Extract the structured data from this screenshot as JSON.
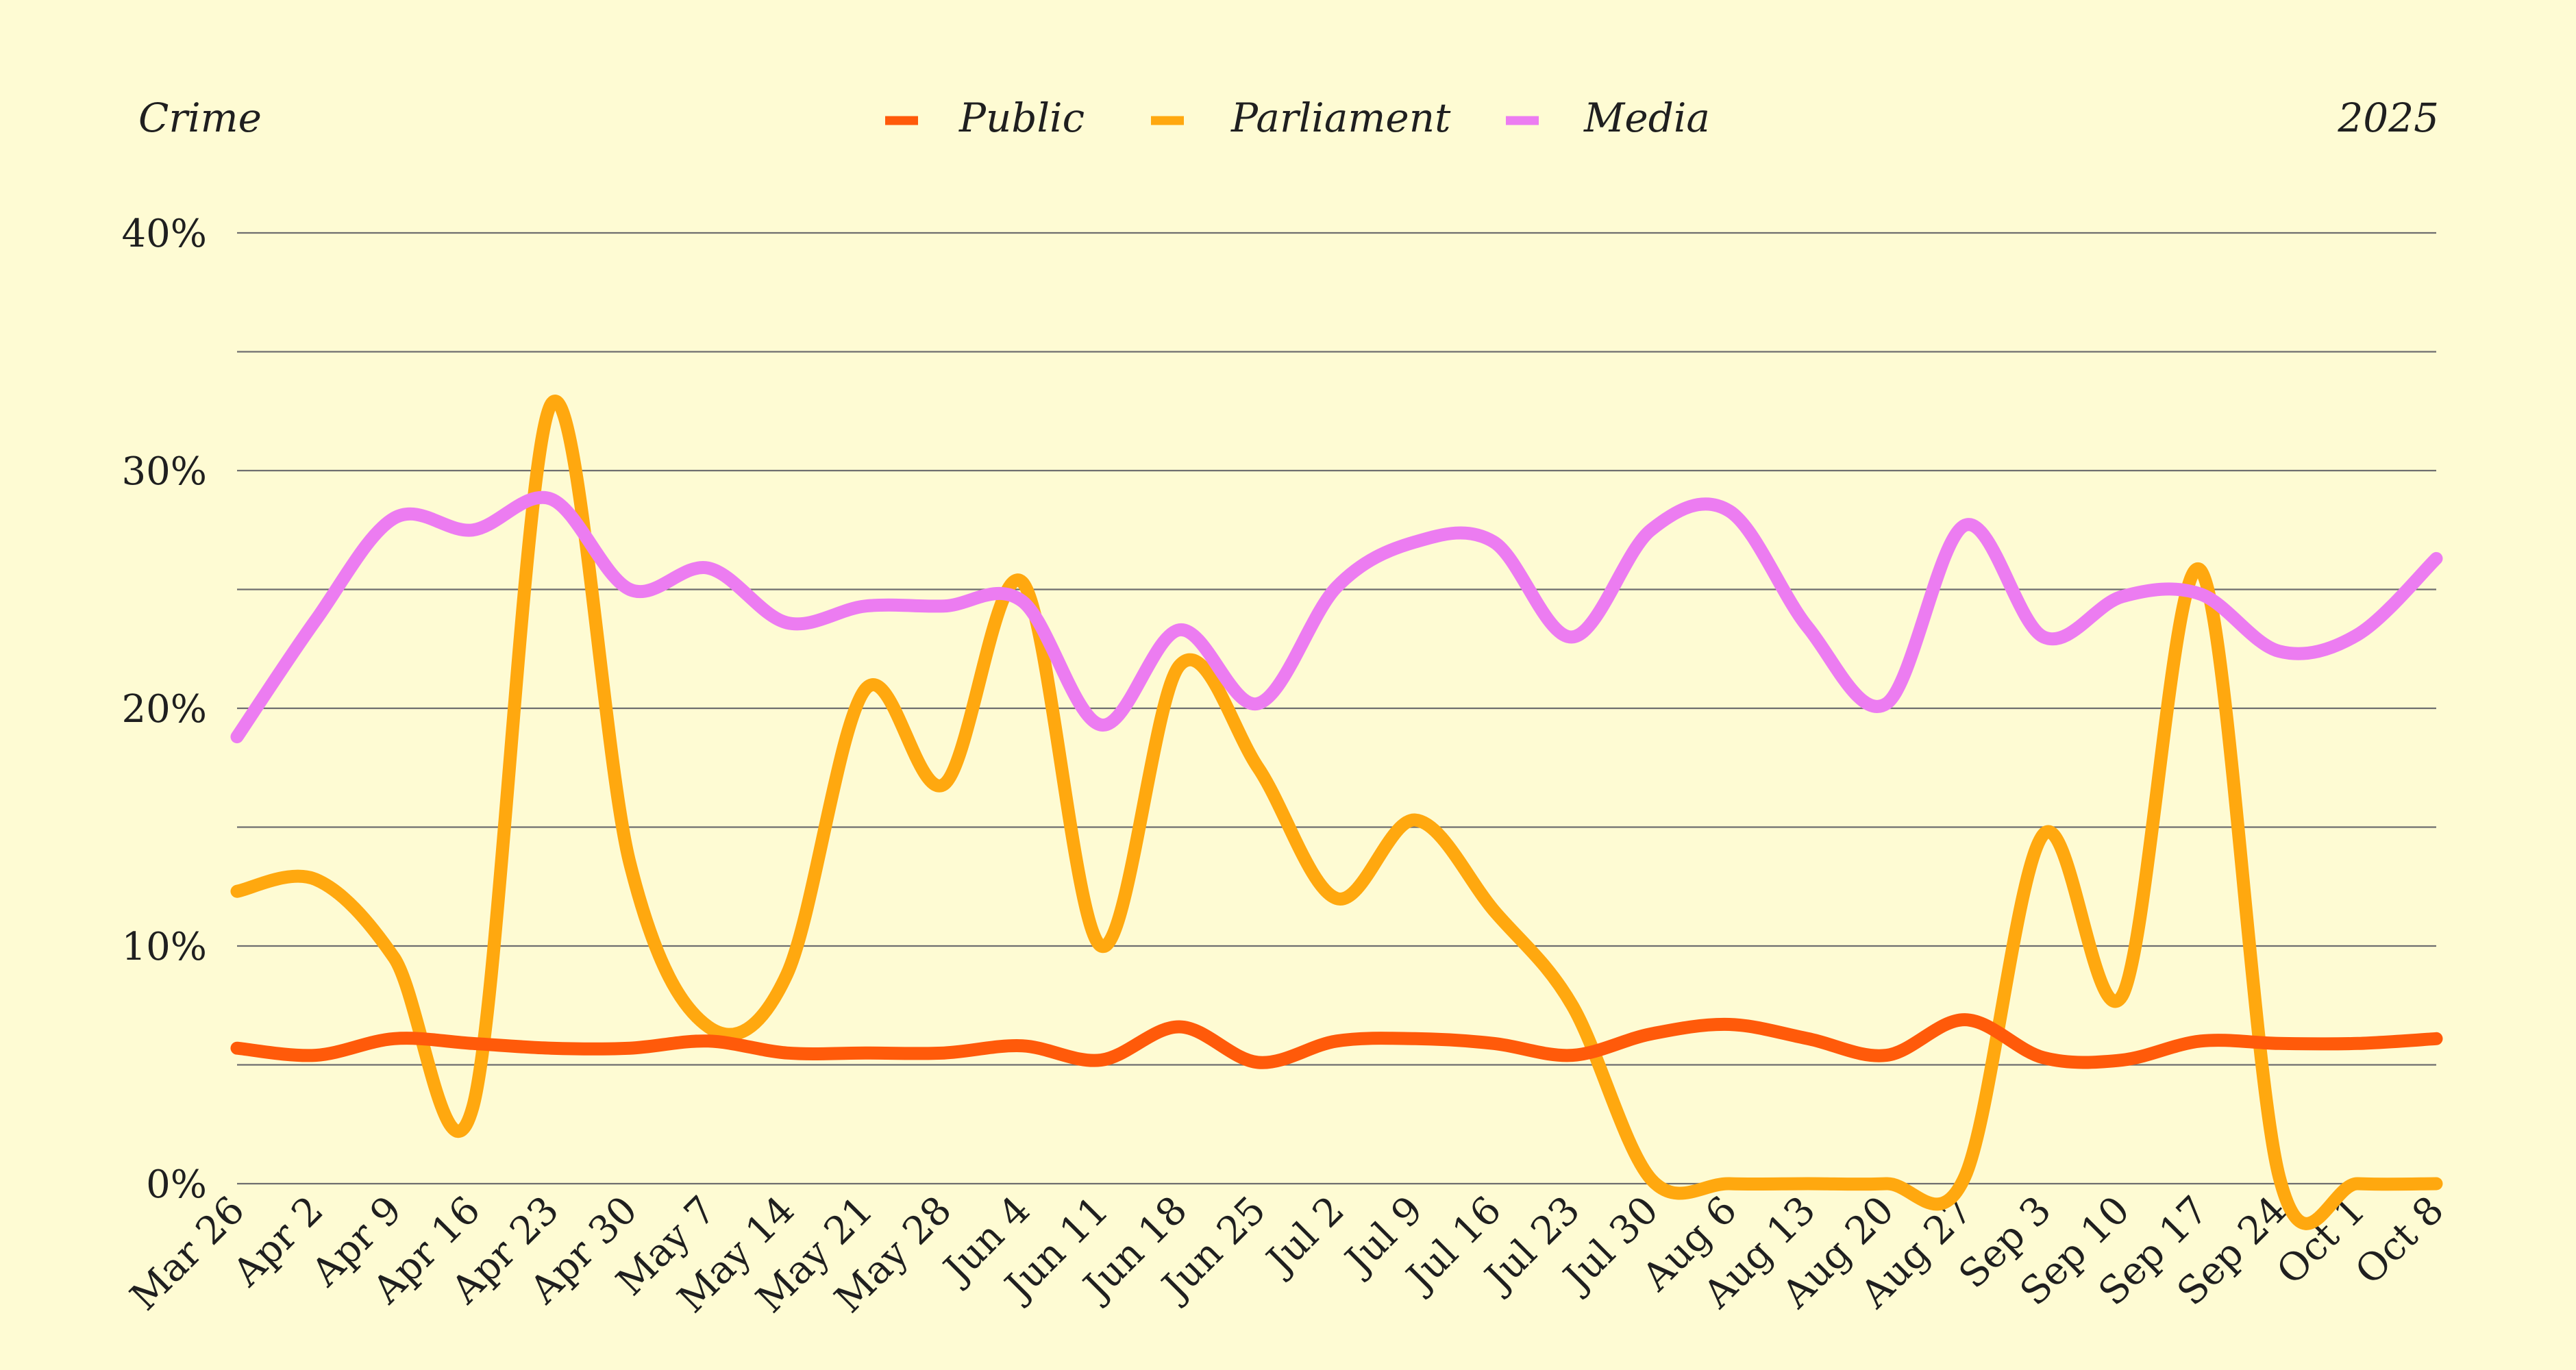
{
  "chart_data": {
    "type": "line",
    "title": "Crime",
    "year": "2025",
    "categories": [
      "Mar 26",
      "Apr 2",
      "Apr 9",
      "Apr 16",
      "Apr 23",
      "Apr 30",
      "May 7",
      "May 14",
      "May 21",
      "May 28",
      "Jun 4",
      "Jun 11",
      "Jun 18",
      "Jun 25",
      "Jul 2",
      "Jul 9",
      "Jul 16",
      "Jul 23",
      "Jul 30",
      "Aug 6",
      "Aug 13",
      "Aug 20",
      "Aug 27",
      "Sep 3",
      "Sep 10",
      "Sep 17",
      "Sep 24",
      "Oct 1",
      "Oct 8"
    ],
    "y_ticks": [
      {
        "value": 0,
        "label": "0%"
      },
      {
        "value": 10,
        "label": "10%"
      },
      {
        "value": 20,
        "label": "20%"
      },
      {
        "value": 30,
        "label": "30%"
      },
      {
        "value": 40,
        "label": "40%"
      }
    ],
    "minor_gridlines": [
      5,
      15,
      25,
      35
    ],
    "ylim": [
      0,
      40
    ],
    "series": [
      {
        "name": "Public",
        "color": "#ff5a0a",
        "values": [
          5.7,
          5.4,
          6.1,
          5.9,
          5.7,
          5.7,
          6.0,
          5.5,
          5.5,
          5.5,
          5.8,
          5.2,
          6.6,
          5.1,
          6.0,
          6.1,
          5.9,
          5.4,
          6.3,
          6.7,
          6.1,
          5.4,
          6.9,
          5.3,
          5.2,
          6.0,
          5.9,
          5.9,
          6.1
        ]
      },
      {
        "name": "Parliament",
        "color": "#ffa80f",
        "values": [
          12.3,
          12.8,
          9.5,
          3.2,
          32.8,
          13.5,
          6.6,
          8.8,
          20.8,
          16.8,
          25.3,
          10.0,
          21.8,
          17.5,
          12.0,
          15.3,
          11.5,
          7.5,
          0.2,
          0.0,
          0.0,
          0.0,
          0.3,
          14.7,
          7.9,
          25.8,
          0.3,
          0.0,
          0.0
        ]
      },
      {
        "name": "Media",
        "color": "#ec7cf1",
        "values": [
          18.8,
          23.7,
          28.0,
          27.5,
          28.8,
          25.0,
          25.9,
          23.6,
          24.3,
          24.3,
          24.5,
          19.3,
          23.3,
          20.2,
          25.1,
          27.0,
          27.0,
          23.0,
          27.5,
          28.3,
          23.4,
          20.2,
          27.7,
          23.0,
          24.7,
          24.8,
          22.4,
          23.1,
          26.3
        ]
      }
    ]
  }
}
